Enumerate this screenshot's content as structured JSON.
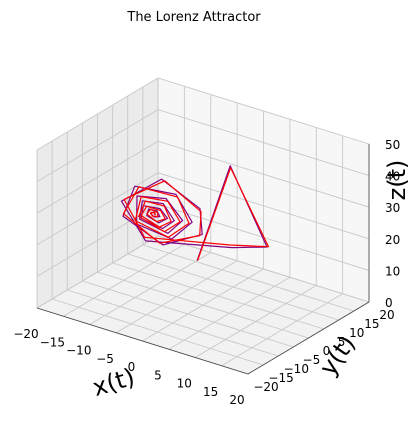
{
  "chart_data": {
    "type": "line3d",
    "title": "The Lorenz Attractor",
    "xlabel": "x(t)",
    "ylabel": "y(t)",
    "zlabel": "z(t)",
    "xlim": [
      -20,
      20
    ],
    "ylim": [
      -20,
      20
    ],
    "zlim": [
      0,
      50
    ],
    "x_ticks": [
      "−20",
      "−15",
      "−10",
      "−5",
      "0",
      "5",
      "10",
      "15",
      "20"
    ],
    "y_ticks": [
      "−20",
      "−15",
      "−10",
      "−5",
      "0",
      "5",
      "10",
      "15",
      "20"
    ],
    "z_ticks": [
      "0",
      "10",
      "20",
      "30",
      "40",
      "50"
    ],
    "grid": true,
    "series": [
      {
        "color": "#800080",
        "points": [
          [
            -8.0,
            12.0,
            3.0
          ],
          [
            4.0,
            2.0,
            45.0
          ],
          [
            13.0,
            -1.5,
            26.0
          ],
          [
            3.5,
            3.5,
            18.0
          ],
          [
            -6.0,
            -8.5,
            22.0
          ],
          [
            -12.0,
            -6.0,
            30.0
          ],
          [
            -9.0,
            2.0,
            34.0
          ],
          [
            -2.0,
            2.5,
            28.0
          ],
          [
            1.0,
            -2.0,
            24.0
          ],
          [
            -3.0,
            -8.0,
            22.0
          ],
          [
            -10.0,
            -9.0,
            28.0
          ],
          [
            -11.5,
            -2.5,
            33.0
          ],
          [
            -6.0,
            1.5,
            31.0
          ],
          [
            -1.5,
            -1.0,
            26.0
          ],
          [
            -2.5,
            -6.0,
            23.0
          ],
          [
            -8.0,
            -8.0,
            26.0
          ],
          [
            -10.5,
            -3.5,
            31.0
          ],
          [
            -7.0,
            0.0,
            30.0
          ],
          [
            -3.0,
            -1.5,
            26.0
          ],
          [
            -3.5,
            -5.5,
            24.0
          ],
          [
            -8.0,
            -7.0,
            27.0
          ],
          [
            -9.5,
            -3.5,
            30.0
          ],
          [
            -7.0,
            -1.0,
            29.0
          ],
          [
            -4.0,
            -2.5,
            26.0
          ],
          [
            -4.5,
            -5.5,
            25.0
          ],
          [
            -8.0,
            -6.5,
            27.0
          ],
          [
            -9.0,
            -4.0,
            29.0
          ],
          [
            -7.0,
            -2.0,
            28.0
          ],
          [
            -5.0,
            -3.0,
            26.5
          ],
          [
            -5.5,
            -5.0,
            26.0
          ],
          [
            -7.5,
            -5.5,
            27.5
          ],
          [
            -8.0,
            -4.0,
            28.5
          ],
          [
            -7.0,
            -3.0,
            27.8
          ],
          [
            -6.0,
            -3.8,
            27.0
          ],
          [
            -6.5,
            -4.8,
            27.2
          ],
          [
            -7.3,
            -4.6,
            27.8
          ],
          [
            -7.2,
            -3.8,
            27.8
          ],
          [
            -6.7,
            -4.0,
            27.4
          ]
        ]
      },
      {
        "color": "#ff0000",
        "points": [
          [
            -7.8,
            11.8,
            3.3
          ],
          [
            4.2,
            1.8,
            44.6
          ],
          [
            13.0,
            -1.0,
            25.8
          ],
          [
            3.0,
            3.8,
            18.4
          ],
          [
            -6.5,
            -8.0,
            22.6
          ],
          [
            -11.8,
            -5.5,
            30.4
          ],
          [
            -8.5,
            2.2,
            33.6
          ],
          [
            -1.5,
            2.0,
            27.6
          ],
          [
            0.8,
            -2.5,
            23.8
          ],
          [
            -3.5,
            -8.2,
            22.4
          ],
          [
            -10.2,
            -8.5,
            28.4
          ],
          [
            -11.0,
            -2.0,
            32.8
          ],
          [
            -5.5,
            1.2,
            30.6
          ],
          [
            -1.8,
            -1.5,
            25.8
          ],
          [
            -3.0,
            -6.2,
            23.4
          ],
          [
            -8.5,
            -7.6,
            26.6
          ],
          [
            -10.0,
            -3.0,
            30.8
          ],
          [
            -6.5,
            -0.3,
            29.6
          ],
          [
            -3.2,
            -2.0,
            25.8
          ],
          [
            -4.0,
            -5.8,
            24.4
          ],
          [
            -8.4,
            -6.6,
            27.4
          ],
          [
            -9.2,
            -3.0,
            29.8
          ],
          [
            -6.6,
            -1.3,
            28.6
          ],
          [
            -4.3,
            -3.0,
            25.9
          ],
          [
            -5.0,
            -5.7,
            25.3
          ],
          [
            -8.3,
            -6.0,
            27.4
          ],
          [
            -8.6,
            -3.6,
            28.8
          ],
          [
            -6.7,
            -2.3,
            27.7
          ],
          [
            -5.2,
            -3.4,
            26.5
          ],
          [
            -5.8,
            -5.2,
            26.3
          ],
          [
            -7.7,
            -5.2,
            27.8
          ],
          [
            -7.8,
            -3.7,
            28.3
          ],
          [
            -6.8,
            -3.2,
            27.6
          ],
          [
            -6.2,
            -4.1,
            27.1
          ],
          [
            -6.8,
            -4.9,
            27.4
          ],
          [
            -7.4,
            -4.4,
            27.9
          ],
          [
            -7.0,
            -3.7,
            27.7
          ],
          [
            -6.8,
            -4.2,
            27.4
          ]
        ]
      }
    ]
  }
}
